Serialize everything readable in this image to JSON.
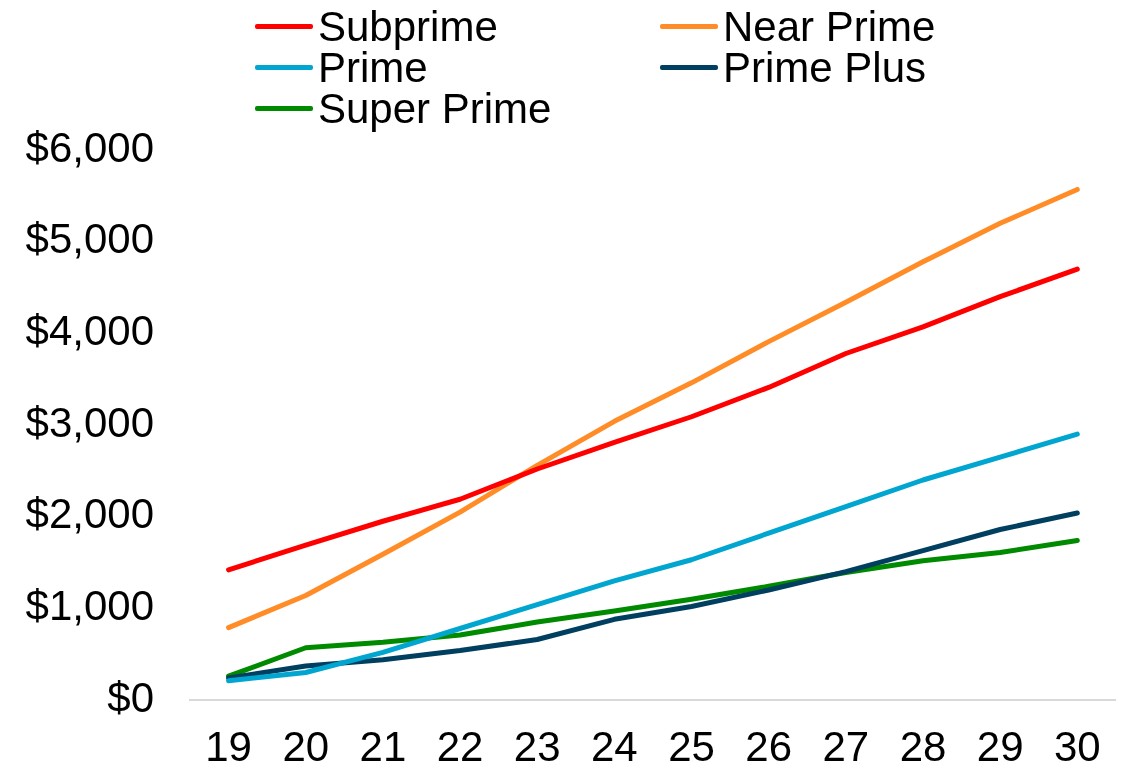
{
  "chart_data": {
    "type": "line",
    "categories": [
      "19",
      "20",
      "21",
      "22",
      "23",
      "24",
      "25",
      "26",
      "27",
      "28",
      "29",
      "30"
    ],
    "series": [
      {
        "name": "Subprime",
        "color": "#ff0000",
        "values": [
          1420,
          1690,
          1950,
          2190,
          2520,
          2810,
          3090,
          3410,
          3780,
          4070,
          4400,
          4700
        ]
      },
      {
        "name": "Near Prime",
        "color": "#ff8c26",
        "values": [
          790,
          1140,
          1590,
          2050,
          2560,
          3040,
          3460,
          3910,
          4340,
          4780,
          5200,
          5570
        ]
      },
      {
        "name": "Prime",
        "color": "#00a6d0",
        "values": [
          210,
          300,
          520,
          780,
          1040,
          1300,
          1530,
          1820,
          2110,
          2400,
          2650,
          2900
        ]
      },
      {
        "name": "Prime Plus",
        "color": "#003f5f",
        "values": [
          240,
          370,
          440,
          540,
          660,
          880,
          1020,
          1200,
          1400,
          1630,
          1860,
          2040
        ]
      },
      {
        "name": "Super Prime",
        "color": "#008a00",
        "values": [
          260,
          570,
          630,
          710,
          850,
          970,
          1100,
          1240,
          1390,
          1520,
          1610,
          1740
        ]
      }
    ],
    "ylim": [
      0,
      6000
    ],
    "yticks": [
      {
        "value": 0,
        "label": "$0"
      },
      {
        "value": 1000,
        "label": "$1,000"
      },
      {
        "value": 2000,
        "label": "$2,000"
      },
      {
        "value": 3000,
        "label": "$3,000"
      },
      {
        "value": 4000,
        "label": "$4,000"
      },
      {
        "value": 5000,
        "label": "$5,000"
      },
      {
        "value": 6000,
        "label": "$6,000"
      }
    ],
    "legend": "top",
    "marker": "none",
    "line_style": "solid"
  }
}
